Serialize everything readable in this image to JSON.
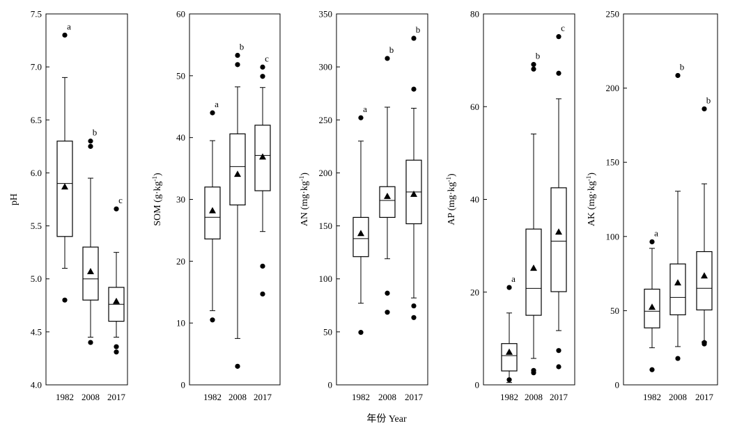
{
  "xlabel": "年份 Year",
  "categories": [
    "1982",
    "2008",
    "2017"
  ],
  "chart_data": [
    {
      "type": "box",
      "ylabel": "pH",
      "ylim": [
        4.0,
        7.5
      ],
      "yticks": [
        "4.0",
        "4.5",
        "5.0",
        "5.5",
        "6.0",
        "6.5",
        "7.0",
        "7.5"
      ],
      "categories": [
        "1982",
        "2008",
        "2017"
      ],
      "boxes": [
        {
          "category": "1982",
          "whisker_low": 5.1,
          "q1": 5.4,
          "median": 5.9,
          "q3": 6.3,
          "whisker_high": 6.9,
          "mean": 5.87,
          "outliers": [
            4.8,
            7.3
          ],
          "letter": "a"
        },
        {
          "category": "2008",
          "whisker_low": 4.45,
          "q1": 4.8,
          "median": 5.0,
          "q3": 5.3,
          "whisker_high": 5.95,
          "mean": 5.07,
          "outliers": [
            4.4,
            6.25,
            6.3
          ],
          "letter": "b"
        },
        {
          "category": "2017",
          "whisker_low": 4.45,
          "q1": 4.6,
          "median": 4.76,
          "q3": 4.92,
          "whisker_high": 5.25,
          "mean": 4.79,
          "outliers": [
            4.31,
            4.36,
            5.66
          ],
          "letter": "c"
        }
      ]
    },
    {
      "type": "box",
      "ylabel": "SOM (g·kg⁻¹)",
      "ylim": [
        0,
        60
      ],
      "yticks": [
        "0",
        "10",
        "20",
        "30",
        "40",
        "50",
        "60"
      ],
      "categories": [
        "1982",
        "2008",
        "2017"
      ],
      "boxes": [
        {
          "category": "1982",
          "whisker_low": 12.0,
          "q1": 23.6,
          "median": 27.1,
          "q3": 32.0,
          "whisker_high": 39.5,
          "mean": 28.2,
          "outliers": [
            10.5,
            44.0
          ],
          "letter": "a"
        },
        {
          "category": "2008",
          "whisker_low": 7.5,
          "q1": 29.1,
          "median": 35.3,
          "q3": 40.6,
          "whisker_high": 48.2,
          "mean": 34.1,
          "outliers": [
            3.0,
            51.8,
            53.3
          ],
          "letter": "b"
        },
        {
          "category": "2017",
          "whisker_low": 24.8,
          "q1": 31.4,
          "median": 37.1,
          "q3": 42.0,
          "whisker_high": 48.1,
          "mean": 36.9,
          "outliers": [
            14.7,
            19.2,
            49.9,
            51.4
          ],
          "letter": "c"
        }
      ]
    },
    {
      "type": "box",
      "ylabel": "AN (mg·kg⁻¹)",
      "ylim": [
        0,
        350
      ],
      "yticks": [
        "0",
        "50",
        "100",
        "150",
        "200",
        "250",
        "300",
        "350"
      ],
      "categories": [
        "1982",
        "2008",
        "2017"
      ],
      "boxes": [
        {
          "category": "1982",
          "whisker_low": 77,
          "q1": 121,
          "median": 138,
          "q3": 158,
          "whisker_high": 230,
          "mean": 143,
          "outliers": [
            49.5,
            252
          ],
          "letter": "a"
        },
        {
          "category": "2008",
          "whisker_low": 119,
          "q1": 158,
          "median": 174,
          "q3": 187,
          "whisker_high": 262,
          "mean": 178,
          "outliers": [
            68.5,
            86.5,
            308
          ],
          "letter": "b"
        },
        {
          "category": "2017",
          "whisker_low": 82,
          "q1": 152,
          "median": 182,
          "q3": 212,
          "whisker_high": 261,
          "mean": 180,
          "outliers": [
            63.5,
            74.5,
            279,
            327
          ],
          "letter": "b"
        }
      ]
    },
    {
      "type": "box",
      "ylabel": "AP (mg·kg⁻¹)",
      "ylim": [
        0,
        80
      ],
      "yticks": [
        "0",
        "20",
        "40",
        "60",
        "80"
      ],
      "categories": [
        "1982",
        "2008",
        "2017"
      ],
      "boxes": [
        {
          "category": "1982",
          "whisker_low": 0.5,
          "q1": 3.0,
          "median": 6.3,
          "q3": 8.9,
          "whisker_high": 15.5,
          "mean": 7.1,
          "outliers": [
            1.1,
            21.0
          ],
          "letter": "a"
        },
        {
          "category": "2008",
          "whisker_low": 5.7,
          "q1": 15.0,
          "median": 20.8,
          "q3": 33.6,
          "whisker_high": 54.1,
          "mean": 25.2,
          "outliers": [
            2.6,
            3.1,
            68.1,
            69.1
          ],
          "letter": "b"
        },
        {
          "category": "2017",
          "whisker_low": 11.7,
          "q1": 20.1,
          "median": 31.0,
          "q3": 42.5,
          "whisker_high": 61.7,
          "mean": 33.0,
          "outliers": [
            3.9,
            7.4,
            67.2,
            75.1
          ],
          "letter": "c"
        }
      ]
    },
    {
      "type": "box",
      "ylabel": "AK (mg·kg⁻¹)",
      "ylim": [
        0,
        250
      ],
      "yticks": [
        "0",
        "50",
        "100",
        "150",
        "200",
        "250"
      ],
      "categories": [
        "1982",
        "2008",
        "2017"
      ],
      "boxes": [
        {
          "category": "1982",
          "whisker_low": 25,
          "q1": 38.4,
          "median": 49.6,
          "q3": 64.5,
          "whisker_high": 92,
          "mean": 52.5,
          "outliers": [
            10.2,
            96.4
          ],
          "letter": "a"
        },
        {
          "category": "2008",
          "whisker_low": 25.8,
          "q1": 47.2,
          "median": 58.9,
          "q3": 81.5,
          "whisker_high": 130.5,
          "mean": 68.9,
          "outliers": [
            17.8,
            208.5
          ],
          "letter": "b"
        },
        {
          "category": "2017",
          "whisker_low": 29,
          "q1": 50.5,
          "median": 65.1,
          "q3": 89.8,
          "whisker_high": 135.5,
          "mean": 73.6,
          "outliers": [
            27.6,
            28.5,
            186
          ],
          "letter": "b"
        }
      ]
    }
  ]
}
